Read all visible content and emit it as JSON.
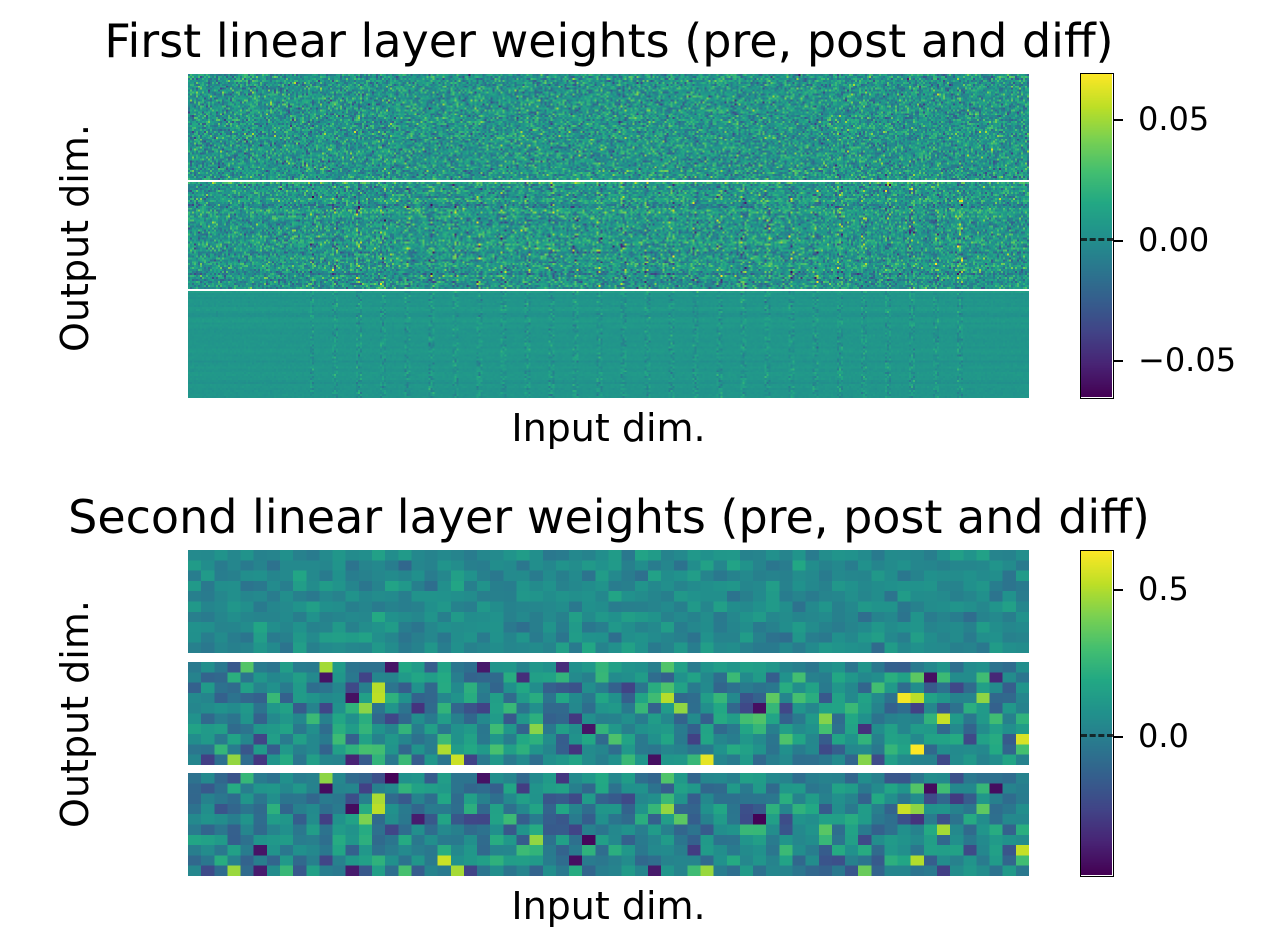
{
  "chart_data": [
    {
      "type": "heatmap",
      "title": "First linear layer weights (pre, post and diff)",
      "xlabel": "Input dim.",
      "ylabel": "Output dim.",
      "panels": [
        "pre",
        "post",
        "diff"
      ],
      "colormap": "viridis",
      "colorbar": {
        "range": [
          -0.065,
          0.068
        ],
        "ticks": [
          0.05,
          0.0,
          -0.05
        ],
        "tick_labels": [
          "0.05",
          "0.00",
          "−0.05"
        ],
        "zero_marker": true
      }
    },
    {
      "type": "heatmap",
      "title": "Second linear layer weights (pre, post and diff)",
      "xlabel": "Input dim.",
      "ylabel": "Output dim.",
      "panels": [
        "pre",
        "post",
        "diff"
      ],
      "grid_cells": [
        64,
        10
      ],
      "colormap": "viridis",
      "colorbar": {
        "range": [
          -0.48,
          0.62
        ],
        "ticks": [
          0.5,
          0.0
        ],
        "tick_labels": [
          "0.5",
          "0.0"
        ],
        "zero_marker": true
      }
    }
  ]
}
